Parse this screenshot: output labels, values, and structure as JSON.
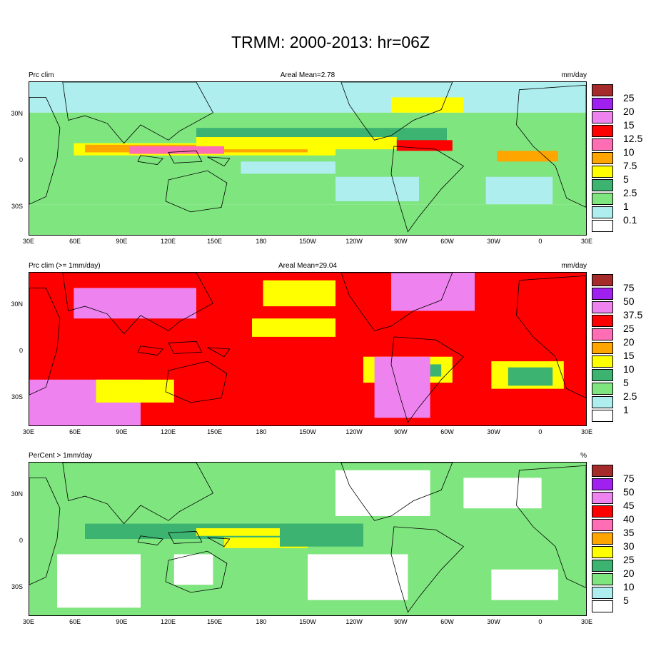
{
  "title": "TRMM: 2000-2013: hr=06Z",
  "x_ticks": [
    "30E",
    "60E",
    "90E",
    "120E",
    "150E",
    "180",
    "150W",
    "120W",
    "90W",
    "60W",
    "30W",
    "0",
    "30E"
  ],
  "y_ticks": [
    "30N",
    "0",
    "30S"
  ],
  "panels": [
    {
      "left": "Prc clim",
      "center": "Areal Mean=2.78",
      "right": "mm/day",
      "legend_labels": [
        "25",
        "20",
        "15",
        "12.5",
        "10",
        "7.5",
        "5",
        "2.5",
        "1",
        "0.1"
      ],
      "legend_colors": [
        "#a52a2a",
        "#a020f0",
        "#ee82ee",
        "#ff0000",
        "#ff6eb4",
        "#ffa500",
        "#ffff00",
        "#3cb371",
        "#7fe57f",
        "#aeeeee",
        "#ffffff"
      ]
    },
    {
      "left": "Prc clim (>= 1mm/day)",
      "center": "Areal Mean=29.04",
      "right": "mm/day",
      "legend_labels": [
        "75",
        "50",
        "37.5",
        "25",
        "20",
        "15",
        "10",
        "5",
        "2.5",
        "1"
      ],
      "legend_colors": [
        "#a52a2a",
        "#a020f0",
        "#ee82ee",
        "#ff0000",
        "#ff6eb4",
        "#ffa500",
        "#ffff00",
        "#3cb371",
        "#7fe57f",
        "#aeeeee",
        "#ffffff"
      ]
    },
    {
      "left": "PerCent > 1mm/day",
      "center": "",
      "right": "%",
      "legend_labels": [
        "75",
        "50",
        "45",
        "40",
        "35",
        "30",
        "25",
        "20",
        "10",
        "5"
      ],
      "legend_colors": [
        "#a52a2a",
        "#a020f0",
        "#ee82ee",
        "#ff0000",
        "#ff6eb4",
        "#ffa500",
        "#ffff00",
        "#3cb371",
        "#7fe57f",
        "#aeeeee",
        "#ffffff"
      ]
    }
  ]
}
